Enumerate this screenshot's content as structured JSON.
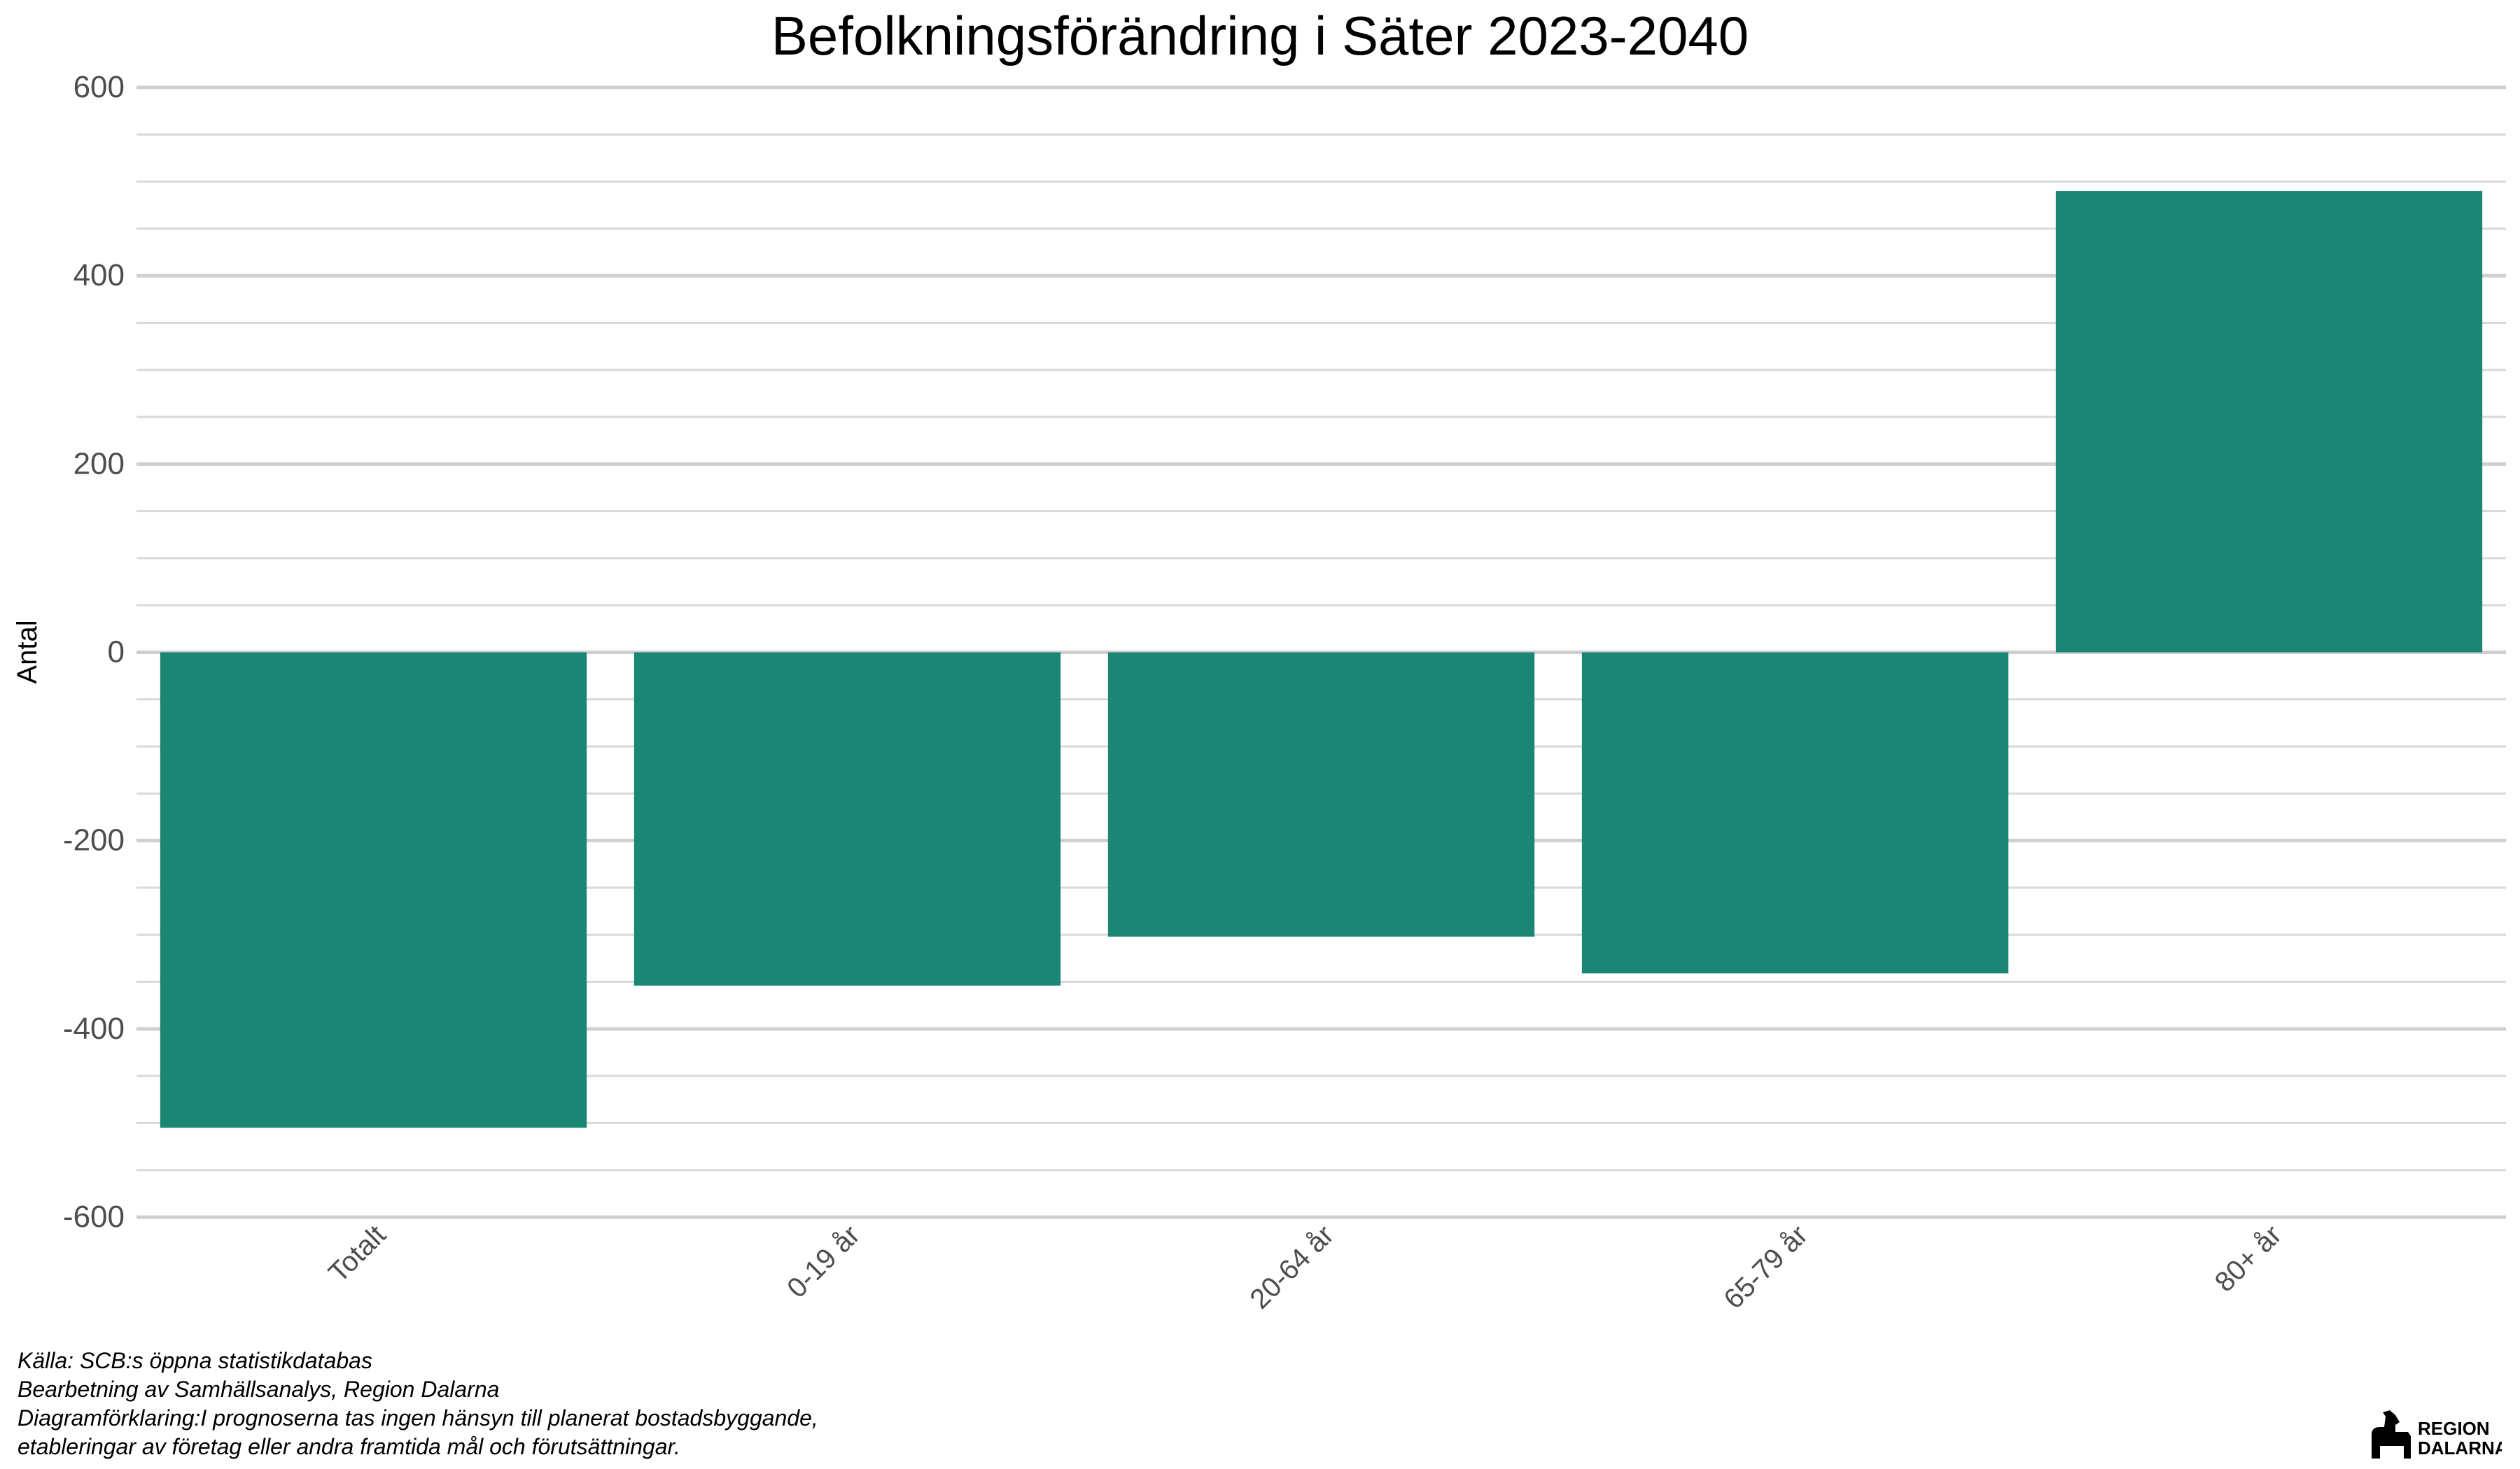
{
  "chart_data": {
    "type": "bar",
    "title": "Befolkningsförändring i Säter 2023-2040",
    "xlabel": "",
    "ylabel": "Antal",
    "categories": [
      "Totalt",
      "0-19 år",
      "20-64 år",
      "65-79 år",
      "80+ år"
    ],
    "values": [
      -505,
      -354,
      -302,
      -341,
      490
    ],
    "ylim": [
      -600,
      600
    ],
    "yticks": [
      600,
      400,
      200,
      0,
      -200,
      -400,
      -600
    ],
    "bar_color": "#1a8673",
    "grid": true,
    "legend": "none"
  },
  "caption": {
    "lines": [
      "Källa: SCB:s öppna statistikdatabas",
      "Bearbetning av Samhällsanalys, Region Dalarna",
      "Diagramförklaring:I prognoserna tas ingen hänsyn till planerat bostadsbyggande,",
      "etableringar av företag eller andra framtida mål och förutsättningar."
    ]
  },
  "logo": {
    "line1": "REGION",
    "line2": "DALARNA",
    "icon": "dala-horse-icon"
  }
}
